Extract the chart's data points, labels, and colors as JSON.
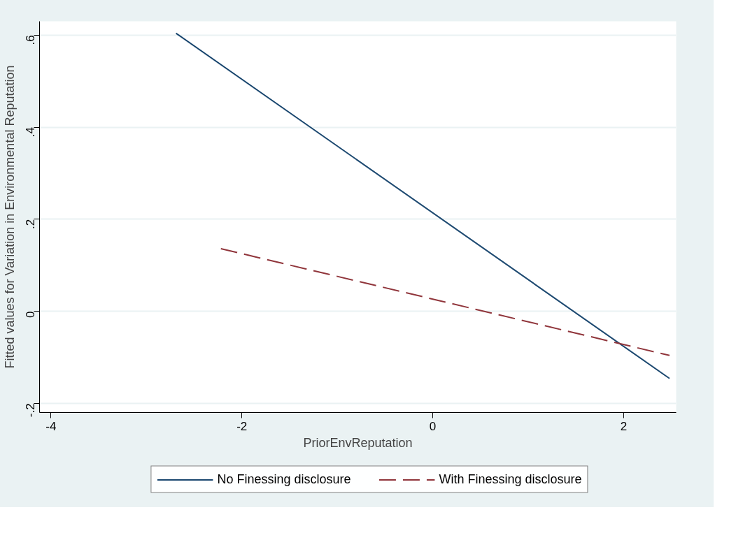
{
  "chart_data": {
    "type": "line",
    "xlabel": "PriorEnvReputation",
    "ylabel": "Fitted values for Variation in Environmental Reputation",
    "xlim": [
      -4.12,
      2.55
    ],
    "ylim": [
      -0.22,
      0.63
    ],
    "xticks": [
      -4,
      -2,
      0,
      2
    ],
    "yticks": [
      {
        "value": -0.2,
        "label": "-.2"
      },
      0,
      {
        "value": 0.2,
        "label": ".2"
      },
      {
        "value": 0.4,
        "label": ".4"
      },
      {
        "value": 0.6,
        "label": ".6"
      }
    ],
    "grid": "y",
    "legend": "bottom",
    "series": [
      {
        "name": "No Finessing disclosure",
        "color": "#1a476f",
        "line_style": "solid",
        "x": [
          -2.69,
          2.48
        ],
        "values": [
          0.604,
          -0.146
        ]
      },
      {
        "name": "With Finessing disclosure",
        "color": "#90353b",
        "line_style": "dashed",
        "x": [
          -2.22,
          2.48
        ],
        "values": [
          0.136,
          -0.096
        ]
      }
    ]
  }
}
